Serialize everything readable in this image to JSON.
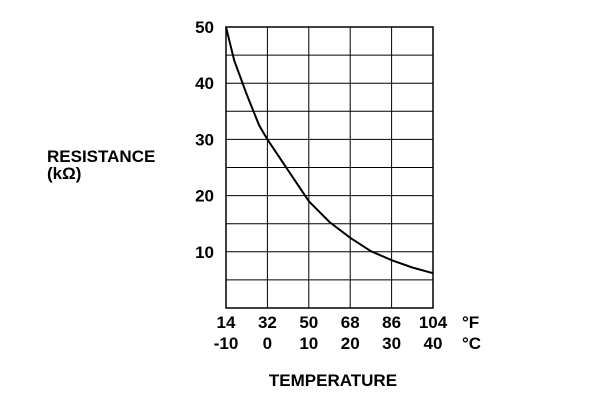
{
  "chart_data": {
    "type": "line",
    "ylabel_line1": "RESISTANCE",
    "ylabel_line2": "(kΩ)",
    "xlabel": "TEMPERATURE",
    "x_unit_c": "°C",
    "x_unit_f": "°F",
    "x_ticks_c": [
      "-10",
      "0",
      "10",
      "20",
      "30",
      "40"
    ],
    "x_ticks_f": [
      "14",
      "32",
      "50",
      "68",
      "86",
      "104"
    ],
    "y_ticks": [
      "10",
      "20",
      "30",
      "40",
      "50"
    ],
    "xlim": [
      -10,
      40
    ],
    "ylim": [
      0,
      50
    ],
    "grid": true,
    "series": [
      {
        "x": [
          -10,
          -8,
          -5,
          -2,
          0,
          5,
          10,
          15,
          20,
          25,
          30,
          35,
          40
        ],
        "y": [
          50,
          44,
          38,
          32.5,
          30,
          24.5,
          19,
          15.3,
          12.5,
          10.1,
          8.5,
          7.2,
          6.2
        ]
      }
    ]
  }
}
